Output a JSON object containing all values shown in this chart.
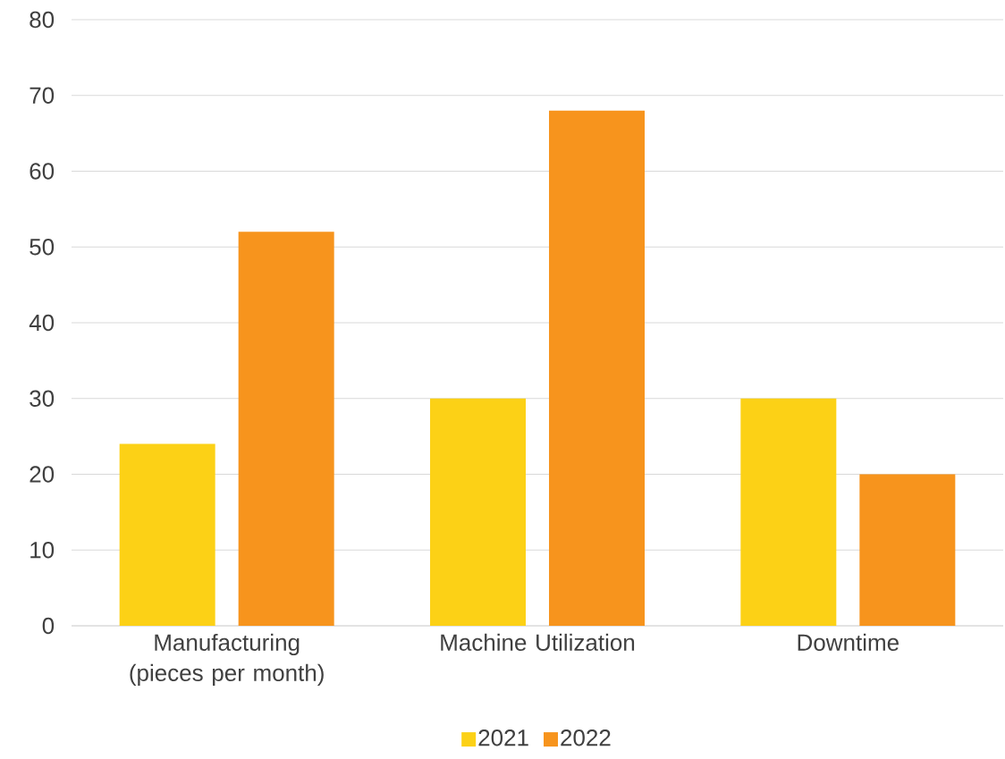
{
  "chart_data": {
    "type": "bar",
    "categories": [
      "Manufacturing (pieces per month)",
      "Machine Utilization",
      "Downtime"
    ],
    "series": [
      {
        "name": "2021",
        "color": "#fcd116",
        "values": [
          24,
          30,
          30
        ]
      },
      {
        "name": "2022",
        "color": "#f7941d",
        "values": [
          52,
          68,
          20
        ]
      }
    ],
    "ylim": [
      0,
      80
    ],
    "yticks": [
      0,
      10,
      20,
      30,
      40,
      50,
      60,
      70,
      80
    ],
    "grid": "y",
    "legend": "bottom"
  }
}
